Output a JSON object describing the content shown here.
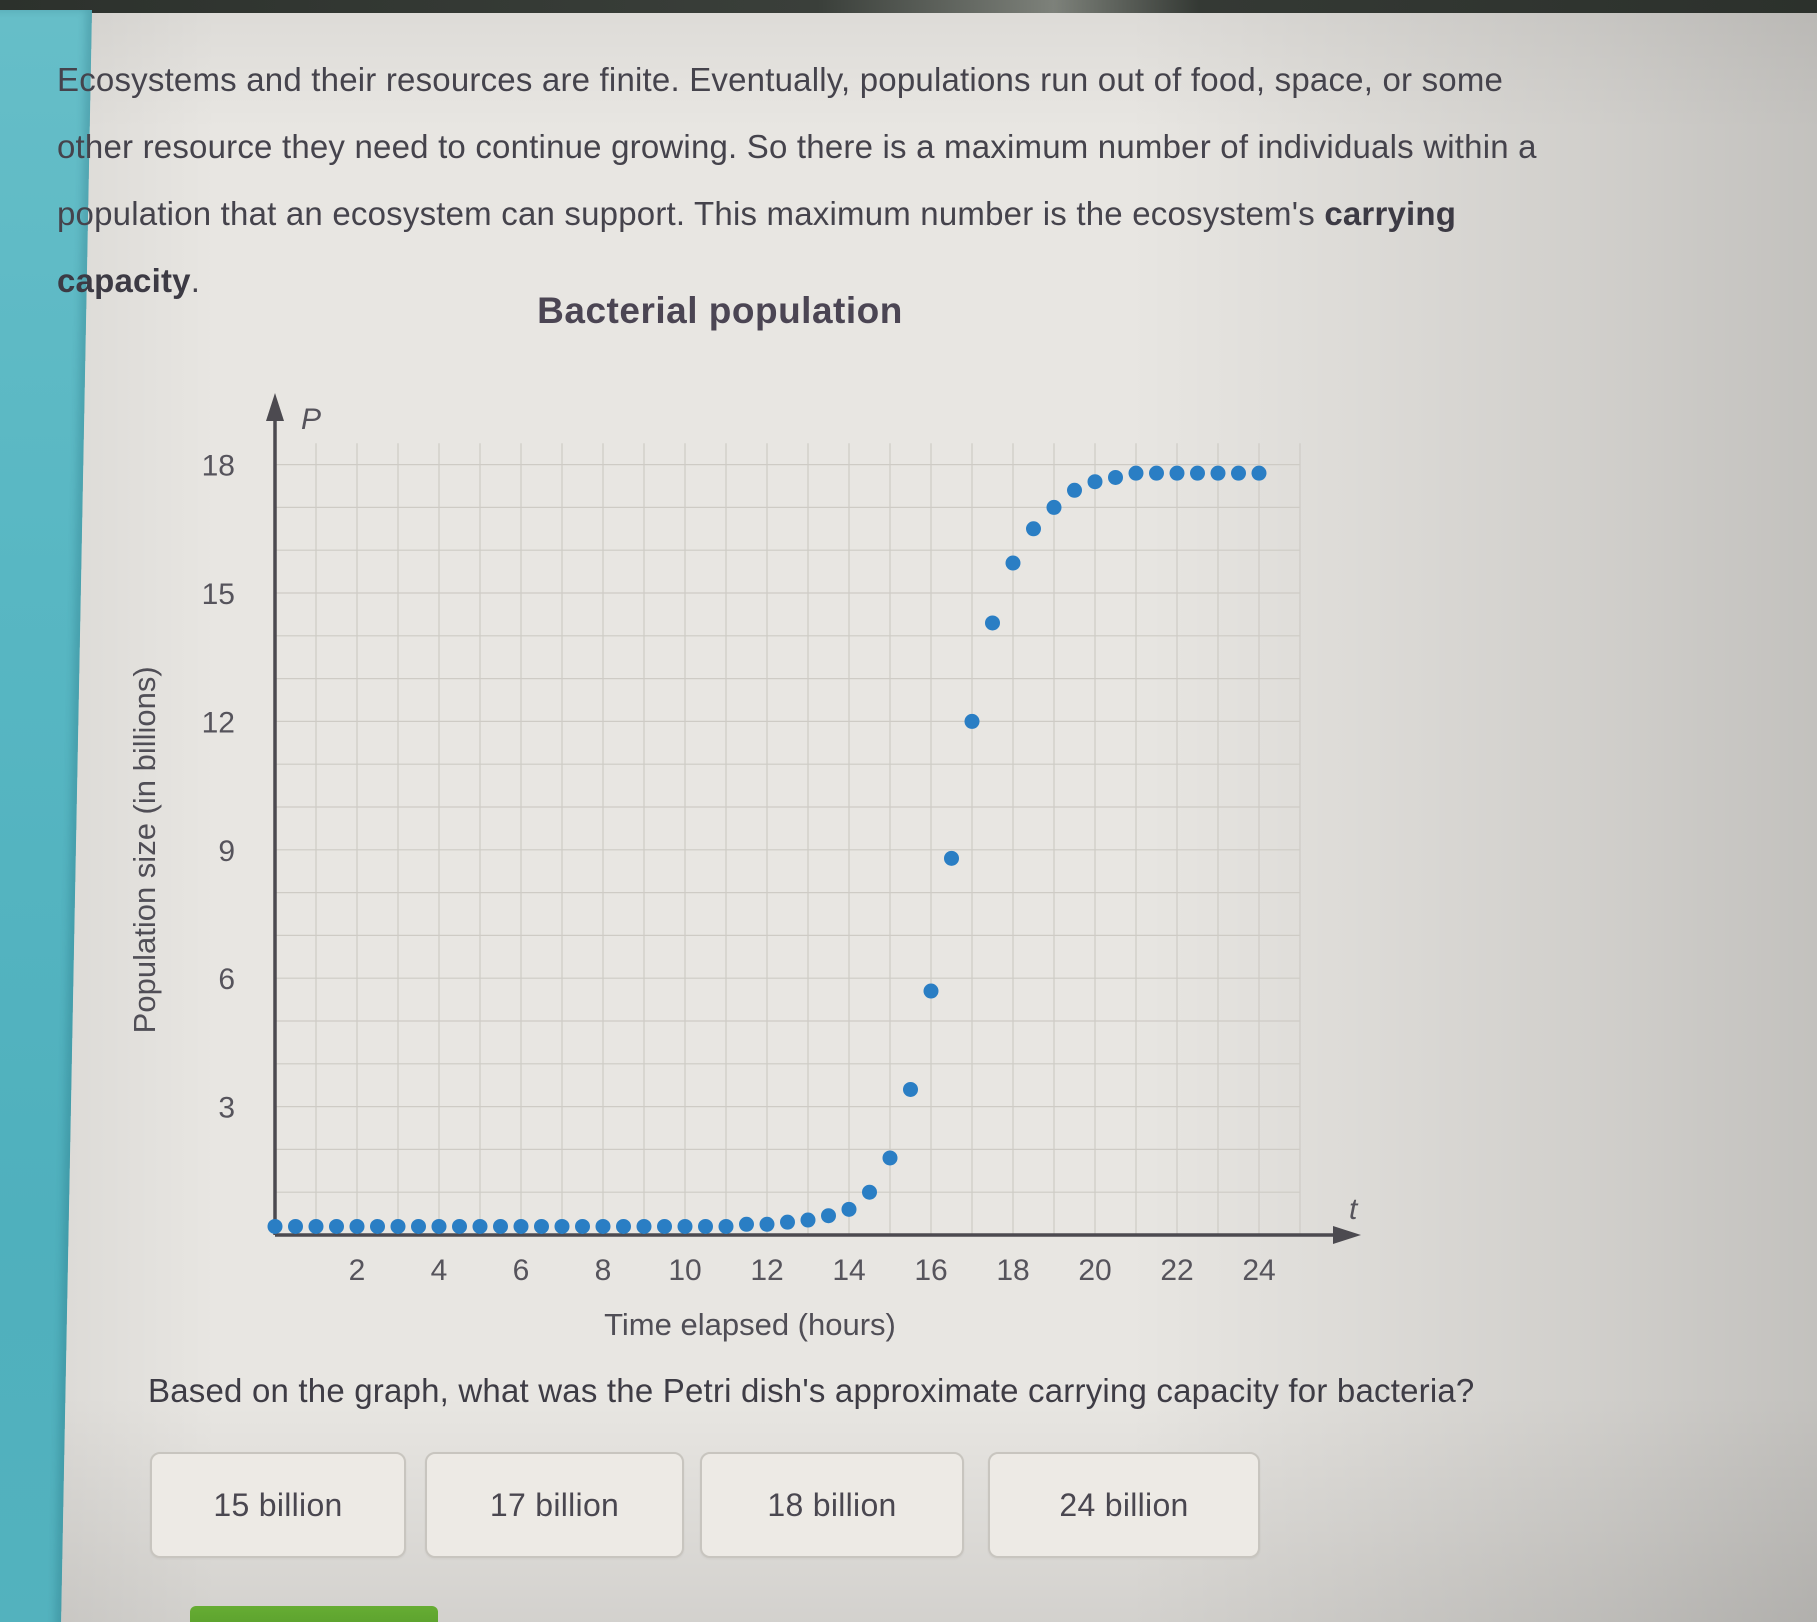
{
  "intro": {
    "text_before_bold": "Ecosystems and their resources are finite. Eventually, populations run out of food, space, or some other resource they need to continue growing. So there is a maximum number of individuals within a population that an ecosystem can support. This maximum number is the ecosystem's ",
    "bold_term": "carrying capacity",
    "text_after_bold": "."
  },
  "chart_data": {
    "type": "scatter",
    "title": "Bacterial population",
    "xlabel": "Time elapsed (hours)",
    "ylabel": "Population size (in billions)",
    "x_axis_symbol": "t",
    "y_axis_symbol": "P",
    "xlim": [
      0,
      25
    ],
    "ylim": [
      0,
      18.5
    ],
    "x_ticks": [
      2,
      4,
      6,
      8,
      10,
      12,
      14,
      16,
      18,
      20,
      22,
      24
    ],
    "y_ticks": [
      3,
      6,
      9,
      12,
      15,
      18
    ],
    "grid": {
      "visible": true,
      "x_step": 1,
      "y_step": 1
    },
    "legend": "none",
    "point_color": "#2a7ec4",
    "carrying_capacity_plateau": 17.8,
    "points": [
      [
        0,
        0.2
      ],
      [
        0.5,
        0.2
      ],
      [
        1,
        0.2
      ],
      [
        1.5,
        0.2
      ],
      [
        2,
        0.2
      ],
      [
        2.5,
        0.2
      ],
      [
        3,
        0.2
      ],
      [
        3.5,
        0.2
      ],
      [
        4,
        0.2
      ],
      [
        4.5,
        0.2
      ],
      [
        5,
        0.2
      ],
      [
        5.5,
        0.2
      ],
      [
        6,
        0.2
      ],
      [
        6.5,
        0.2
      ],
      [
        7,
        0.2
      ],
      [
        7.5,
        0.2
      ],
      [
        8,
        0.2
      ],
      [
        8.5,
        0.2
      ],
      [
        9,
        0.2
      ],
      [
        9.5,
        0.2
      ],
      [
        10,
        0.2
      ],
      [
        10.5,
        0.2
      ],
      [
        11,
        0.2
      ],
      [
        11.5,
        0.25
      ],
      [
        12,
        0.25
      ],
      [
        12.5,
        0.3
      ],
      [
        13,
        0.35
      ],
      [
        13.5,
        0.45
      ],
      [
        14,
        0.6
      ],
      [
        14.5,
        1
      ],
      [
        15,
        1.8
      ],
      [
        15.5,
        3.4
      ],
      [
        16,
        5.7
      ],
      [
        16.5,
        8.8
      ],
      [
        17,
        12
      ],
      [
        17.5,
        14.3
      ],
      [
        18,
        15.7
      ],
      [
        18.5,
        16.5
      ],
      [
        19,
        17
      ],
      [
        19.5,
        17.4
      ],
      [
        20,
        17.6
      ],
      [
        20.5,
        17.7
      ],
      [
        21,
        17.8
      ],
      [
        21.5,
        17.8
      ],
      [
        22,
        17.8
      ],
      [
        22.5,
        17.8
      ],
      [
        23,
        17.8
      ],
      [
        23.5,
        17.8
      ],
      [
        24,
        17.8
      ]
    ]
  },
  "question": {
    "text": "Based on the graph, what was the Petri dish's approximate carrying capacity for bacteria?",
    "options": [
      "15 billion",
      "17 billion",
      "18 billion",
      "24 billion"
    ]
  },
  "colors": {
    "side_band_teal": "#58b7c3",
    "data_point_blue": "#2a7ec4",
    "bottom_button_green": "#5aa02b",
    "page_background": "#e8e6e2",
    "text_dark": "#45434c"
  }
}
